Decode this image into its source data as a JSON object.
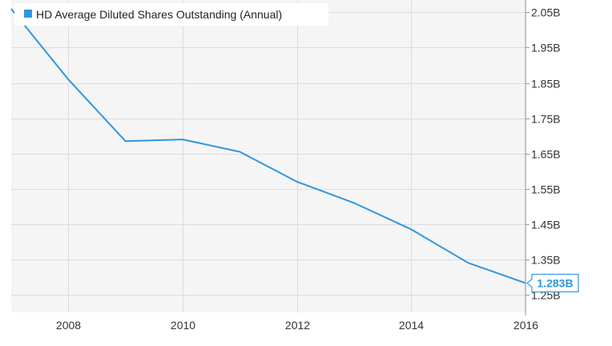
{
  "chart_data": {
    "type": "line",
    "title": "",
    "xlabel": "",
    "ylabel": "",
    "x": [
      2007,
      2008,
      2009,
      2010,
      2011,
      2012,
      2013,
      2014,
      2015,
      2016
    ],
    "x_ticks": [
      2008,
      2010,
      2012,
      2014,
      2016
    ],
    "x_tick_labels": [
      "2008",
      "2010",
      "2012",
      "2014",
      "2016"
    ],
    "y_ticks": [
      1.25,
      1.35,
      1.45,
      1.55,
      1.65,
      1.75,
      1.85,
      1.95,
      2.05
    ],
    "y_tick_labels": [
      "1.25B",
      "1.35B",
      "1.45B",
      "1.55B",
      "1.65B",
      "1.75B",
      "1.85B",
      "1.95B",
      "2.05B"
    ],
    "xlim": [
      2007,
      2016
    ],
    "ylim": [
      1.2,
      2.085
    ],
    "y_axis_position": "right",
    "grid": true,
    "legend_position": "top-left",
    "series": [
      {
        "name": "HD Average Diluted Shares Outstanding (Annual)",
        "color": "#2f96e0",
        "values": [
          2.06,
          1.86,
          1.685,
          1.69,
          1.655,
          1.57,
          1.51,
          1.435,
          1.34,
          1.283
        ]
      }
    ],
    "last_value_label": "1.283B"
  }
}
